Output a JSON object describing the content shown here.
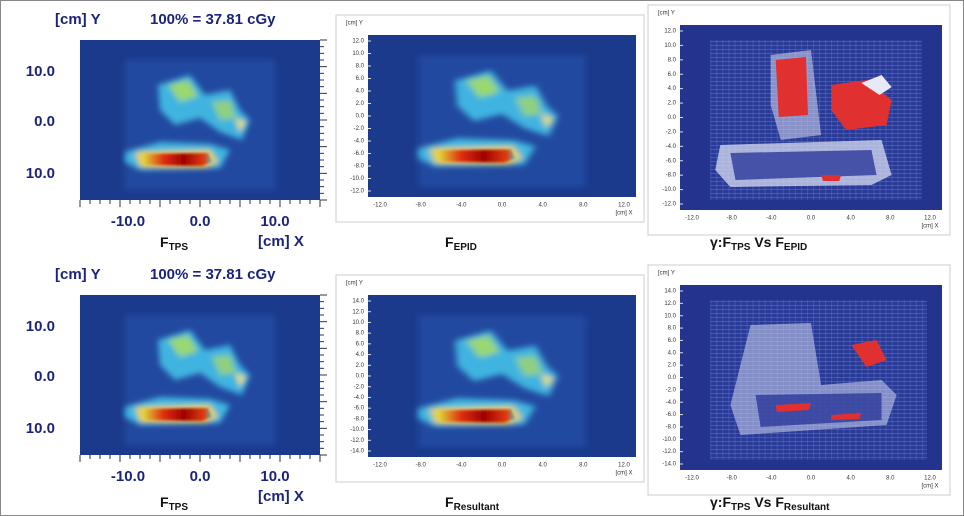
{
  "panels": [
    {
      "header": [
        "[cm] Y",
        "100% = 37.81 cGy"
      ],
      "yticks": [
        "10.0",
        "0.0",
        "10.0"
      ],
      "xticks": [
        "-10.0",
        "0.0",
        "10.0"
      ],
      "xunit": "[cm] X",
      "caption": [
        "F",
        "TPS"
      ]
    },
    {
      "yunit": "[cm] Y",
      "yticks": [
        "12.0",
        "10.0",
        "8.0",
        "6.0",
        "4.0",
        "2.0",
        "0.0",
        "-2.0",
        "-4.0",
        "-6.0",
        "-8.0",
        "-10.0",
        "-12.0"
      ],
      "xticks": [
        "-12.0",
        "-8.0",
        "-4.0",
        "0.0",
        "4.0",
        "8.0",
        "12.0"
      ],
      "xunit": "[cm] X",
      "caption": [
        "F",
        "EPID"
      ]
    },
    {
      "yunit": "[cm] Y",
      "yticks": [
        "12.0",
        "10.0",
        "8.0",
        "6.0",
        "4.0",
        "2.0",
        "0.0",
        "-2.0",
        "-4.0",
        "-6.0",
        "-8.0",
        "-10.0",
        "-12.0"
      ],
      "xticks": [
        "-12.0",
        "-8.0",
        "-4.0",
        "0.0",
        "4.0",
        "8.0",
        "12.0"
      ],
      "xunit": "[cm] X",
      "caption": [
        "γ:F",
        "TPS",
        " Vs F",
        "EPID"
      ]
    },
    {
      "header": [
        "[cm] Y",
        "100% = 37.81 cGy"
      ],
      "yticks": [
        "10.0",
        "0.0",
        "10.0"
      ],
      "xticks": [
        "-10.0",
        "0.0",
        "10.0"
      ],
      "xunit": "[cm] X",
      "caption": [
        "F",
        "TPS"
      ]
    },
    {
      "yunit": "[cm] Y",
      "yticks": [
        "14.0",
        "12.0",
        "10.0",
        "8.0",
        "6.0",
        "4.0",
        "2.0",
        "0.0",
        "-2.0",
        "-4.0",
        "-6.0",
        "-8.0",
        "-10.0",
        "-12.0",
        "-14.0"
      ],
      "xticks": [
        "-12.0",
        "-8.0",
        "-4.0",
        "0.0",
        "4.0",
        "8.0",
        "12.0"
      ],
      "xunit": "[cm] X",
      "caption": [
        "F",
        "Resultant"
      ]
    },
    {
      "yunit": "[cm] Y",
      "yticks": [
        "14.0",
        "12.0",
        "10.0",
        "8.0",
        "6.0",
        "4.0",
        "2.0",
        "0.0",
        "-2.0",
        "-4.0",
        "-6.0",
        "-8.0",
        "-10.0",
        "-12.0",
        "-14.0"
      ],
      "xticks": [
        "-12.0",
        "-8.0",
        "-4.0",
        "0.0",
        "4.0",
        "8.0",
        "12.0"
      ],
      "xunit": "[cm] X",
      "caption": [
        "γ:F",
        "TPS",
        " Vs F",
        "Resultant"
      ]
    }
  ]
}
